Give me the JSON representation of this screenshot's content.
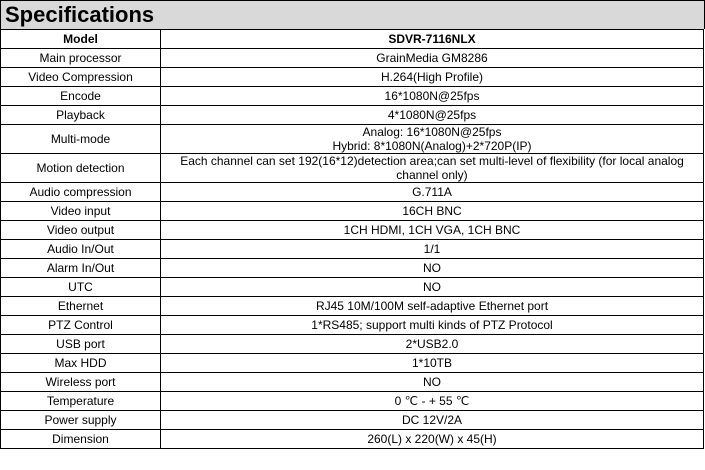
{
  "title": "Specifications",
  "table": {
    "header": [
      "Model",
      "SDVR-7116NLX"
    ],
    "rows": [
      [
        "Main processor",
        "GrainMedia GM8286"
      ],
      [
        "Video Compression",
        "H.264(High Profile)"
      ],
      [
        "Encode",
        "16*1080N@25fps"
      ],
      [
        "Playback",
        "4*1080N@25fps"
      ],
      [
        "Multi-mode",
        [
          "Analog: 16*1080N@25fps",
          "Hybrid: 8*1080N(Analog)+2*720P(IP)"
        ]
      ],
      [
        "Motion detection",
        "Each channel can set 192(16*12)detection area;can set multi-level of flexibility (for local analog channel only)"
      ],
      [
        "Audio compression",
        "G.711A"
      ],
      [
        "Video input",
        "16CH BNC"
      ],
      [
        "Video output",
        "1CH HDMI, 1CH VGA, 1CH BNC"
      ],
      [
        "Audio In/Out",
        "1/1"
      ],
      [
        "Alarm In/Out",
        "NO"
      ],
      [
        "UTC",
        "NO"
      ],
      [
        "Ethernet",
        "RJ45 10M/100M self-adaptive Ethernet port"
      ],
      [
        "PTZ Control",
        "1*RS485; support multi kinds of PTZ Protocol"
      ],
      [
        "USB port",
        "2*USB2.0"
      ],
      [
        "Max HDD",
        "1*10TB"
      ],
      [
        "Wireless port",
        "NO"
      ],
      [
        "Temperature",
        "0 ℃ - + 55 ℃"
      ],
      [
        "Power supply",
        "DC 12V/2A"
      ],
      [
        "Dimension",
        "260(L) x 220(W) x 45(H)"
      ]
    ]
  }
}
